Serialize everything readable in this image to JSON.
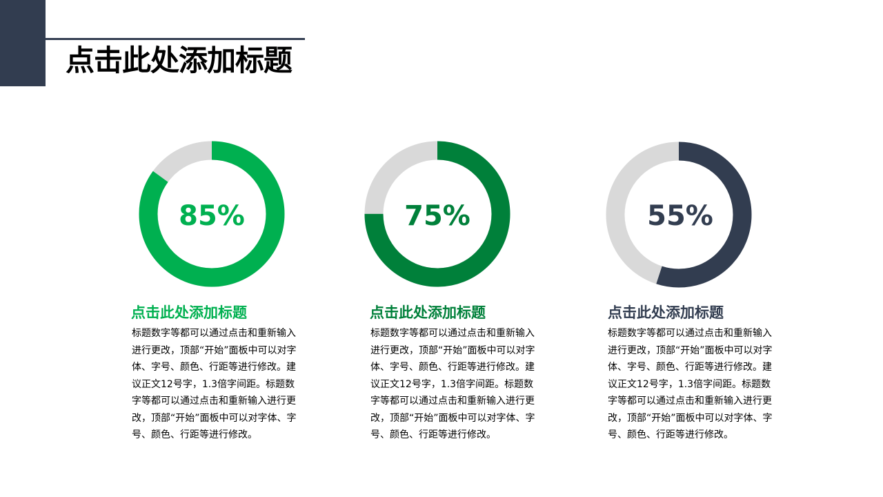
{
  "slide": {
    "title": "点击此处添加标题"
  },
  "colors": {
    "accent_green": "#00b050",
    "accent_dark_green": "#00803a",
    "accent_navy": "#323d50",
    "track_gray": "#d9d9d9"
  },
  "cards": [
    {
      "percent_value": 85,
      "percent_label": "85%",
      "color": "#00b050",
      "heading": "点击此处添加标题",
      "body": "标题数字等都可以通过点击和重新输入进行更改，顶部“开始”面板中可以对字体、字号、颜色、行距等进行修改。建议正文12号字，1.3倍字间距。标题数字等都可以通过点击和重新输入进行更改，顶部“开始”面板中可以对字体、字号、颜色、行距等进行修改。"
    },
    {
      "percent_value": 75,
      "percent_label": "75%",
      "color": "#00803a",
      "heading": "点击此处添加标题",
      "body": "标题数字等都可以通过点击和重新输入进行更改，顶部“开始”面板中可以对字体、字号、颜色、行距等进行修改。建议正文12号字，1.3倍字间距。标题数字等都可以通过点击和重新输入进行更改，顶部“开始”面板中可以对字体、字号、颜色、行距等进行修改。"
    },
    {
      "percent_value": 55,
      "percent_label": "55%",
      "color": "#323d50",
      "heading": "点击此处添加标题",
      "body": "标题数字等都可以通过点击和重新输入进行更改，顶部“开始”面板中可以对字体、字号、颜色、行距等进行修改。建议正文12号字，1.3倍字间距。标题数字等都可以通过点击和重新输入进行更改，顶部“开始”面板中可以对字体、字号、颜色、行距等进行修改。"
    }
  ]
}
